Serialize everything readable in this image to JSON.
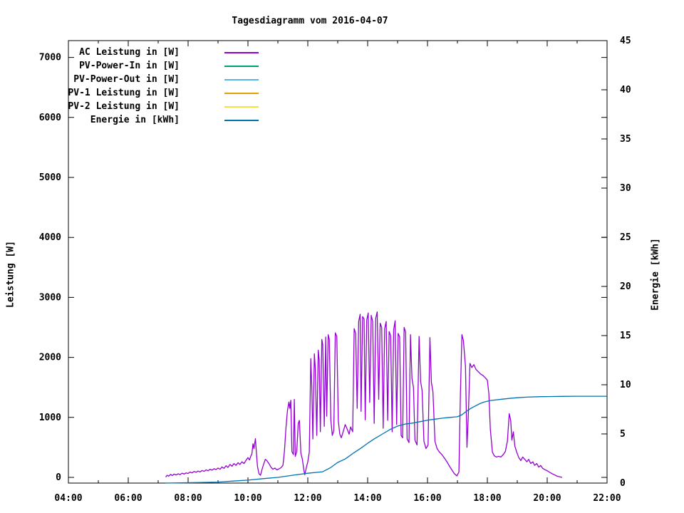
{
  "window": {
    "title": "Tagesdiagramm vom 2016-04-07"
  },
  "chart_data": {
    "type": "line",
    "title": "Tagesdiagramm vom 2016-04-07",
    "xlabel": "",
    "ylabel_left": "Leistung [W]",
    "ylabel_right": "Energie [kWh]",
    "grid": false,
    "legend_position": "top-left-inside",
    "background_color": "#ffffff",
    "border_color": "#000000",
    "x_range_hours": [
      4,
      22
    ],
    "x_tick_hours": [
      4,
      6,
      8,
      10,
      12,
      14,
      16,
      18,
      20,
      22
    ],
    "x_tick_labels": [
      "04:00",
      "06:00",
      "08:00",
      "10:00",
      "12:00",
      "14:00",
      "16:00",
      "18:00",
      "20:00",
      "22:00"
    ],
    "x_minor_tick_hours": [
      5,
      7,
      9,
      11,
      13,
      15,
      17,
      19,
      21
    ],
    "y_left_ticks": [
      0,
      1000,
      2000,
      3000,
      4000,
      5000,
      6000,
      7000
    ],
    "y_left_axis_max": 7300,
    "y_right_ticks": [
      0,
      5,
      10,
      15,
      20,
      25,
      30,
      35,
      40,
      45
    ],
    "y_right_axis_max": 45,
    "series": [
      {
        "name": "AC Leistung in [W]",
        "color": "#9400d3",
        "axis": "left",
        "points": [
          [
            7.25,
            5
          ],
          [
            7.3,
            35
          ],
          [
            7.35,
            20
          ],
          [
            7.42,
            50
          ],
          [
            7.47,
            30
          ],
          [
            7.53,
            55
          ],
          [
            7.6,
            40
          ],
          [
            7.67,
            60
          ],
          [
            7.73,
            45
          ],
          [
            7.8,
            70
          ],
          [
            7.87,
            55
          ],
          [
            7.93,
            75
          ],
          [
            8.0,
            65
          ],
          [
            8.07,
            90
          ],
          [
            8.13,
            75
          ],
          [
            8.2,
            100
          ],
          [
            8.27,
            85
          ],
          [
            8.33,
            105
          ],
          [
            8.4,
            90
          ],
          [
            8.47,
            115
          ],
          [
            8.53,
            100
          ],
          [
            8.6,
            125
          ],
          [
            8.67,
            110
          ],
          [
            8.73,
            135
          ],
          [
            8.8,
            120
          ],
          [
            8.87,
            145
          ],
          [
            8.93,
            130
          ],
          [
            9.0,
            155
          ],
          [
            9.07,
            135
          ],
          [
            9.13,
            175
          ],
          [
            9.2,
            150
          ],
          [
            9.27,
            195
          ],
          [
            9.33,
            165
          ],
          [
            9.4,
            215
          ],
          [
            9.47,
            185
          ],
          [
            9.53,
            230
          ],
          [
            9.6,
            200
          ],
          [
            9.67,
            245
          ],
          [
            9.73,
            215
          ],
          [
            9.8,
            260
          ],
          [
            9.87,
            230
          ],
          [
            9.93,
            280
          ],
          [
            10.0,
            330
          ],
          [
            10.05,
            290
          ],
          [
            10.1,
            360
          ],
          [
            10.13,
            390
          ],
          [
            10.17,
            560
          ],
          [
            10.2,
            480
          ],
          [
            10.25,
            645
          ],
          [
            10.28,
            420
          ],
          [
            10.32,
            180
          ],
          [
            10.37,
            60
          ],
          [
            10.42,
            35
          ],
          [
            10.47,
            130
          ],
          [
            10.53,
            230
          ],
          [
            10.58,
            300
          ],
          [
            10.63,
            280
          ],
          [
            10.7,
            230
          ],
          [
            10.77,
            170
          ],
          [
            10.83,
            135
          ],
          [
            10.9,
            155
          ],
          [
            10.97,
            125
          ],
          [
            11.03,
            140
          ],
          [
            11.1,
            160
          ],
          [
            11.17,
            200
          ],
          [
            11.22,
            430
          ],
          [
            11.27,
            820
          ],
          [
            11.32,
            1110
          ],
          [
            11.37,
            1255
          ],
          [
            11.4,
            1150
          ],
          [
            11.43,
            1285
          ],
          [
            11.47,
            430
          ],
          [
            11.52,
            380
          ],
          [
            11.55,
            1300
          ],
          [
            11.58,
            350
          ],
          [
            11.63,
            430
          ],
          [
            11.68,
            900
          ],
          [
            11.72,
            950
          ],
          [
            11.77,
            400
          ],
          [
            11.82,
            300
          ],
          [
            11.87,
            120
          ],
          [
            11.9,
            45
          ],
          [
            11.95,
            160
          ],
          [
            12.0,
            260
          ],
          [
            12.05,
            420
          ],
          [
            12.1,
            1980
          ],
          [
            12.13,
            1550
          ],
          [
            12.17,
            640
          ],
          [
            12.22,
            2060
          ],
          [
            12.25,
            1820
          ],
          [
            12.3,
            700
          ],
          [
            12.35,
            2120
          ],
          [
            12.38,
            1960
          ],
          [
            12.42,
            760
          ],
          [
            12.47,
            2300
          ],
          [
            12.5,
            2210
          ],
          [
            12.55,
            850
          ],
          [
            12.6,
            2340
          ],
          [
            12.63,
            1020
          ],
          [
            12.68,
            2380
          ],
          [
            12.72,
            2300
          ],
          [
            12.77,
            960
          ],
          [
            12.82,
            700
          ],
          [
            12.87,
            780
          ],
          [
            12.92,
            2410
          ],
          [
            12.97,
            2350
          ],
          [
            13.02,
            950
          ],
          [
            13.07,
            720
          ],
          [
            13.12,
            660
          ],
          [
            13.18,
            760
          ],
          [
            13.25,
            880
          ],
          [
            13.32,
            800
          ],
          [
            13.38,
            720
          ],
          [
            13.43,
            840
          ],
          [
            13.5,
            760
          ],
          [
            13.55,
            2480
          ],
          [
            13.6,
            2400
          ],
          [
            13.65,
            1150
          ],
          [
            13.7,
            2600
          ],
          [
            13.75,
            2720
          ],
          [
            13.78,
            1100
          ],
          [
            13.83,
            2680
          ],
          [
            13.88,
            2640
          ],
          [
            13.92,
            960
          ],
          [
            13.97,
            2620
          ],
          [
            14.02,
            2740
          ],
          [
            14.07,
            1250
          ],
          [
            14.12,
            2700
          ],
          [
            14.17,
            2600
          ],
          [
            14.22,
            900
          ],
          [
            14.27,
            2650
          ],
          [
            14.32,
            2760
          ],
          [
            14.37,
            1300
          ],
          [
            14.42,
            2570
          ],
          [
            14.47,
            2500
          ],
          [
            14.52,
            820
          ],
          [
            14.57,
            2480
          ],
          [
            14.62,
            2600
          ],
          [
            14.67,
            950
          ],
          [
            14.72,
            2430
          ],
          [
            14.77,
            2360
          ],
          [
            14.82,
            760
          ],
          [
            14.87,
            2460
          ],
          [
            14.92,
            2610
          ],
          [
            14.97,
            880
          ],
          [
            15.02,
            2400
          ],
          [
            15.07,
            2340
          ],
          [
            15.12,
            700
          ],
          [
            15.17,
            660
          ],
          [
            15.22,
            2500
          ],
          [
            15.27,
            2420
          ],
          [
            15.32,
            640
          ],
          [
            15.38,
            580
          ],
          [
            15.43,
            2380
          ],
          [
            15.48,
            1650
          ],
          [
            15.53,
            1500
          ],
          [
            15.58,
            620
          ],
          [
            15.65,
            540
          ],
          [
            15.72,
            2350
          ],
          [
            15.77,
            1600
          ],
          [
            15.82,
            1450
          ],
          [
            15.88,
            600
          ],
          [
            15.95,
            480
          ],
          [
            16.02,
            540
          ],
          [
            16.08,
            2330
          ],
          [
            16.13,
            1580
          ],
          [
            16.18,
            1430
          ],
          [
            16.25,
            600
          ],
          [
            16.32,
            480
          ],
          [
            16.4,
            420
          ],
          [
            16.48,
            380
          ],
          [
            16.57,
            320
          ],
          [
            16.65,
            260
          ],
          [
            16.73,
            190
          ],
          [
            16.82,
            120
          ],
          [
            16.9,
            60
          ],
          [
            16.98,
            25
          ],
          [
            17.05,
            90
          ],
          [
            17.1,
            1400
          ],
          [
            17.15,
            2380
          ],
          [
            17.2,
            2280
          ],
          [
            17.27,
            1850
          ],
          [
            17.32,
            500
          ],
          [
            17.37,
            1100
          ],
          [
            17.42,
            1900
          ],
          [
            17.48,
            1830
          ],
          [
            17.55,
            1880
          ],
          [
            17.62,
            1800
          ],
          [
            17.7,
            1760
          ],
          [
            17.78,
            1720
          ],
          [
            17.85,
            1700
          ],
          [
            17.93,
            1660
          ],
          [
            18.0,
            1620
          ],
          [
            18.05,
            1400
          ],
          [
            18.1,
            800
          ],
          [
            18.17,
            420
          ],
          [
            18.23,
            360
          ],
          [
            18.3,
            340
          ],
          [
            18.38,
            350
          ],
          [
            18.45,
            340
          ],
          [
            18.53,
            380
          ],
          [
            18.6,
            430
          ],
          [
            18.67,
            600
          ],
          [
            18.73,
            1060
          ],
          [
            18.78,
            950
          ],
          [
            18.82,
            620
          ],
          [
            18.87,
            760
          ],
          [
            18.92,
            520
          ],
          [
            18.98,
            420
          ],
          [
            19.05,
            330
          ],
          [
            19.12,
            280
          ],
          [
            19.18,
            340
          ],
          [
            19.25,
            300
          ],
          [
            19.32,
            260
          ],
          [
            19.38,
            300
          ],
          [
            19.45,
            230
          ],
          [
            19.52,
            260
          ],
          [
            19.58,
            200
          ],
          [
            19.65,
            230
          ],
          [
            19.72,
            170
          ],
          [
            19.78,
            200
          ],
          [
            19.85,
            150
          ],
          [
            19.92,
            130
          ],
          [
            20.0,
            110
          ],
          [
            20.08,
            85
          ],
          [
            20.17,
            60
          ],
          [
            20.25,
            40
          ],
          [
            20.33,
            20
          ],
          [
            20.42,
            8
          ],
          [
            20.5,
            0
          ]
        ]
      },
      {
        "name": "PV-Power-In in [W]",
        "color": "#009e73",
        "axis": "left",
        "points": []
      },
      {
        "name": "PV-Power-Out in [W]",
        "color": "#56b4e9",
        "axis": "left",
        "points": []
      },
      {
        "name": "PV-1 Leistung in [W]",
        "color": "#e69f00",
        "axis": "left",
        "points": []
      },
      {
        "name": "PV-2 Leistung in [W]",
        "color": "#f0e442",
        "axis": "left",
        "points": []
      },
      {
        "name": "Energie in [kWh]",
        "color": "#0072b2",
        "axis": "right",
        "points": [
          [
            7.25,
            0
          ],
          [
            7.75,
            0.02
          ],
          [
            8.25,
            0.05
          ],
          [
            8.75,
            0.08
          ],
          [
            9.0,
            0.1
          ],
          [
            9.5,
            0.2
          ],
          [
            10.0,
            0.3
          ],
          [
            10.5,
            0.45
          ],
          [
            11.0,
            0.58
          ],
          [
            11.5,
            0.8
          ],
          [
            12.0,
            1.0
          ],
          [
            12.5,
            1.15
          ],
          [
            12.75,
            1.55
          ],
          [
            13.0,
            2.1
          ],
          [
            13.25,
            2.45
          ],
          [
            13.5,
            3.0
          ],
          [
            13.75,
            3.5
          ],
          [
            14.0,
            4.05
          ],
          [
            14.25,
            4.55
          ],
          [
            14.5,
            5.0
          ],
          [
            14.75,
            5.45
          ],
          [
            15.0,
            5.8
          ],
          [
            15.25,
            6.0
          ],
          [
            15.5,
            6.1
          ],
          [
            15.75,
            6.25
          ],
          [
            16.0,
            6.4
          ],
          [
            16.25,
            6.5
          ],
          [
            16.5,
            6.6
          ],
          [
            16.75,
            6.68
          ],
          [
            17.0,
            6.75
          ],
          [
            17.15,
            6.95
          ],
          [
            17.3,
            7.3
          ],
          [
            17.45,
            7.6
          ],
          [
            17.6,
            7.85
          ],
          [
            17.75,
            8.08
          ],
          [
            17.9,
            8.25
          ],
          [
            18.1,
            8.4
          ],
          [
            18.4,
            8.5
          ],
          [
            18.7,
            8.6
          ],
          [
            19.0,
            8.68
          ],
          [
            19.3,
            8.74
          ],
          [
            19.7,
            8.78
          ],
          [
            20.0,
            8.8
          ],
          [
            20.5,
            8.82
          ],
          [
            21.0,
            8.83
          ],
          [
            22.0,
            8.83
          ]
        ]
      }
    ]
  }
}
